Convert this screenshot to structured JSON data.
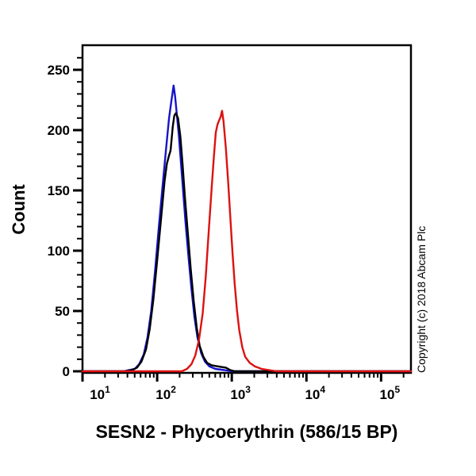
{
  "figure": {
    "title": "SESN2 - Phycoerythrin (586/15 BP)",
    "y_axis_label": "Count",
    "copyright_text": "Copyright (c) 2018 Abcam Plc",
    "background_color": "#ffffff",
    "axis_color": "#000000"
  },
  "chart_data": {
    "type": "line",
    "subtype": "flow-cytometry-histogram",
    "title": "SESN2 - Phycoerythrin (586/15 BP)",
    "xlabel": "SESN2 - Phycoerythrin (586/15 BP)",
    "ylabel": "Count",
    "x_scale": "log10",
    "xlim_log10": [
      1.0,
      5.4
    ],
    "ylim": [
      0,
      270
    ],
    "x_major_ticks_log10": [
      1,
      2,
      3,
      4,
      5
    ],
    "x_tick_labels": [
      {
        "base": "10",
        "exp": "1"
      },
      {
        "base": "10",
        "exp": "2"
      },
      {
        "base": "10",
        "exp": "3"
      },
      {
        "base": "10",
        "exp": "4"
      },
      {
        "base": "10",
        "exp": "5"
      }
    ],
    "y_major_ticks": [
      0,
      50,
      100,
      150,
      200,
      250
    ],
    "y_tick_labels": [
      "0",
      "50",
      "100",
      "150",
      "200",
      "250"
    ],
    "y_minor_step": 10,
    "grid": false,
    "legend_position": "none",
    "series": [
      {
        "name": "blue-curve",
        "color": "#1414CC",
        "peak_log10x": 2.22,
        "peak_count": 237,
        "points_log10x_count": [
          [
            1.0,
            0
          ],
          [
            1.55,
            0
          ],
          [
            1.62,
            1
          ],
          [
            1.7,
            2
          ],
          [
            1.76,
            6
          ],
          [
            1.82,
            14
          ],
          [
            1.87,
            28
          ],
          [
            1.92,
            50
          ],
          [
            1.97,
            82
          ],
          [
            2.02,
            118
          ],
          [
            2.07,
            152
          ],
          [
            2.12,
            185
          ],
          [
            2.16,
            210
          ],
          [
            2.19,
            224
          ],
          [
            2.22,
            237
          ],
          [
            2.24,
            228
          ],
          [
            2.26,
            215
          ],
          [
            2.29,
            196
          ],
          [
            2.32,
            172
          ],
          [
            2.35,
            148
          ],
          [
            2.38,
            124
          ],
          [
            2.42,
            95
          ],
          [
            2.46,
            68
          ],
          [
            2.5,
            45
          ],
          [
            2.54,
            28
          ],
          [
            2.59,
            15
          ],
          [
            2.64,
            8
          ],
          [
            2.7,
            4
          ],
          [
            2.78,
            2
          ],
          [
            2.9,
            1
          ],
          [
            3.0,
            0
          ],
          [
            5.4,
            0
          ]
        ]
      },
      {
        "name": "black-curve",
        "color": "#000000",
        "peak_log10x": 2.25,
        "peak_count": 214,
        "points_log10x_count": [
          [
            1.0,
            0
          ],
          [
            1.58,
            0
          ],
          [
            1.66,
            1
          ],
          [
            1.73,
            3
          ],
          [
            1.79,
            8
          ],
          [
            1.85,
            18
          ],
          [
            1.9,
            35
          ],
          [
            1.95,
            60
          ],
          [
            2.0,
            92
          ],
          [
            2.05,
            125
          ],
          [
            2.1,
            158
          ],
          [
            2.13,
            172
          ],
          [
            2.16,
            179
          ],
          [
            2.18,
            183
          ],
          [
            2.21,
            203
          ],
          [
            2.23,
            212
          ],
          [
            2.25,
            214
          ],
          [
            2.28,
            210
          ],
          [
            2.31,
            195
          ],
          [
            2.34,
            172
          ],
          [
            2.37,
            146
          ],
          [
            2.41,
            115
          ],
          [
            2.45,
            85
          ],
          [
            2.49,
            58
          ],
          [
            2.53,
            36
          ],
          [
            2.57,
            21
          ],
          [
            2.62,
            12
          ],
          [
            2.67,
            7
          ],
          [
            2.73,
            5
          ],
          [
            2.82,
            4
          ],
          [
            2.92,
            3
          ],
          [
            2.98,
            1
          ],
          [
            3.04,
            0
          ],
          [
            5.4,
            0
          ]
        ]
      },
      {
        "name": "red-curve",
        "color": "#DD1111",
        "peak_log10x": 2.87,
        "peak_count": 216,
        "points_log10x_count": [
          [
            1.0,
            0
          ],
          [
            2.33,
            0
          ],
          [
            2.4,
            2
          ],
          [
            2.46,
            6
          ],
          [
            2.51,
            13
          ],
          [
            2.56,
            26
          ],
          [
            2.61,
            48
          ],
          [
            2.65,
            78
          ],
          [
            2.69,
            115
          ],
          [
            2.73,
            152
          ],
          [
            2.76,
            178
          ],
          [
            2.785,
            198
          ],
          [
            2.81,
            205
          ],
          [
            2.83,
            208
          ],
          [
            2.85,
            211
          ],
          [
            2.87,
            216
          ],
          [
            2.89,
            207
          ],
          [
            2.92,
            185
          ],
          [
            2.95,
            158
          ],
          [
            2.98,
            128
          ],
          [
            3.01,
            98
          ],
          [
            3.04,
            72
          ],
          [
            3.07,
            50
          ],
          [
            3.1,
            34
          ],
          [
            3.14,
            20
          ],
          [
            3.18,
            12
          ],
          [
            3.24,
            7
          ],
          [
            3.31,
            4
          ],
          [
            3.4,
            2
          ],
          [
            3.5,
            1
          ],
          [
            3.6,
            0
          ],
          [
            5.4,
            0
          ]
        ]
      }
    ]
  }
}
